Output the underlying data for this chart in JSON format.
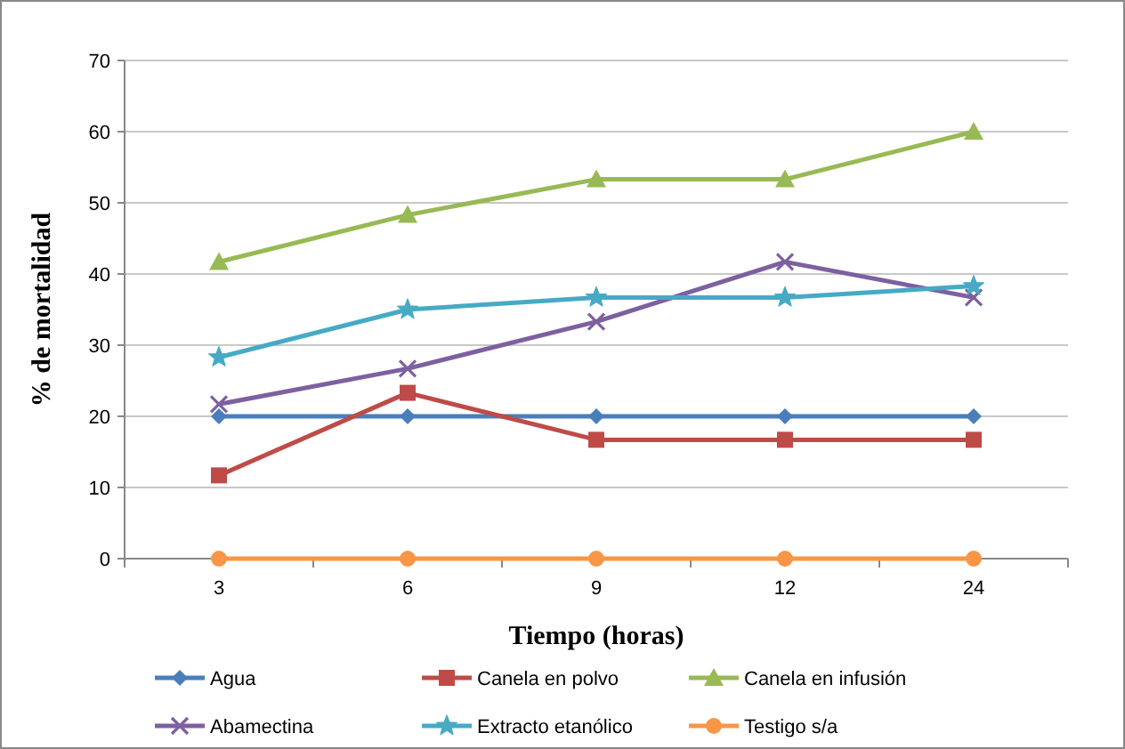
{
  "chart_data": {
    "type": "line",
    "xlabel": "Tiempo (horas)",
    "ylabel": "% de mortalidad",
    "categories": [
      "3",
      "6",
      "9",
      "12",
      "24"
    ],
    "series": [
      {
        "name": "Agua",
        "color": "#4a7ebb",
        "marker": "diamond",
        "values": [
          20,
          20,
          20,
          20,
          20
        ]
      },
      {
        "name": "Canela en polvo",
        "color": "#be4b48",
        "marker": "square",
        "values": [
          11.7,
          23.3,
          16.7,
          16.7,
          16.7
        ]
      },
      {
        "name": "Canela en infusión",
        "color": "#98b954",
        "marker": "triangle",
        "values": [
          41.7,
          48.3,
          53.3,
          53.3,
          60
        ]
      },
      {
        "name": "Abamectina",
        "color": "#7d60a0",
        "marker": "cross",
        "values": [
          21.7,
          26.7,
          33.3,
          41.7,
          36.7
        ]
      },
      {
        "name": "Extracto etanólico",
        "color": "#46aac5",
        "marker": "star",
        "values": [
          28.3,
          35,
          36.7,
          36.7,
          38.3
        ]
      },
      {
        "name": "Testigo s/a",
        "color": "#f79646",
        "marker": "circle",
        "values": [
          0,
          0,
          0,
          0,
          0
        ]
      }
    ],
    "ylim": [
      0,
      70
    ],
    "yticks": [
      0,
      10,
      20,
      30,
      40,
      50,
      60,
      70
    ],
    "grid": "y",
    "legend": "bottom"
  }
}
